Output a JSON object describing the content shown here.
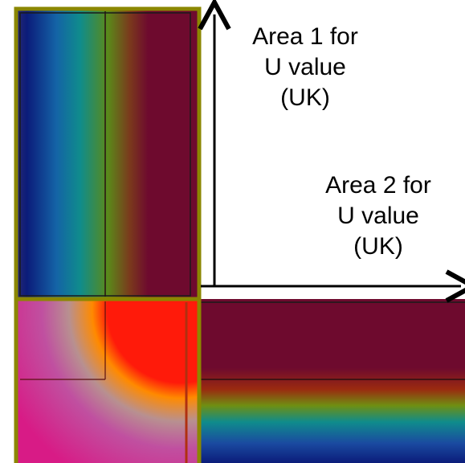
{
  "labels": {
    "area_1": "Area 1 for\nU value\n(UK)",
    "area_2": "Area 2 for\nU value\n(UK)"
  },
  "colors": {
    "frame_border": "#8B8700",
    "dark_red": "#6E0A2E",
    "hot_red": "#FF1A0A",
    "orange": "#FF8A00",
    "magenta": "#D81B86",
    "navy": "#0B1C7A",
    "teal": "#0F8C8C",
    "arrow": "#000000"
  }
}
